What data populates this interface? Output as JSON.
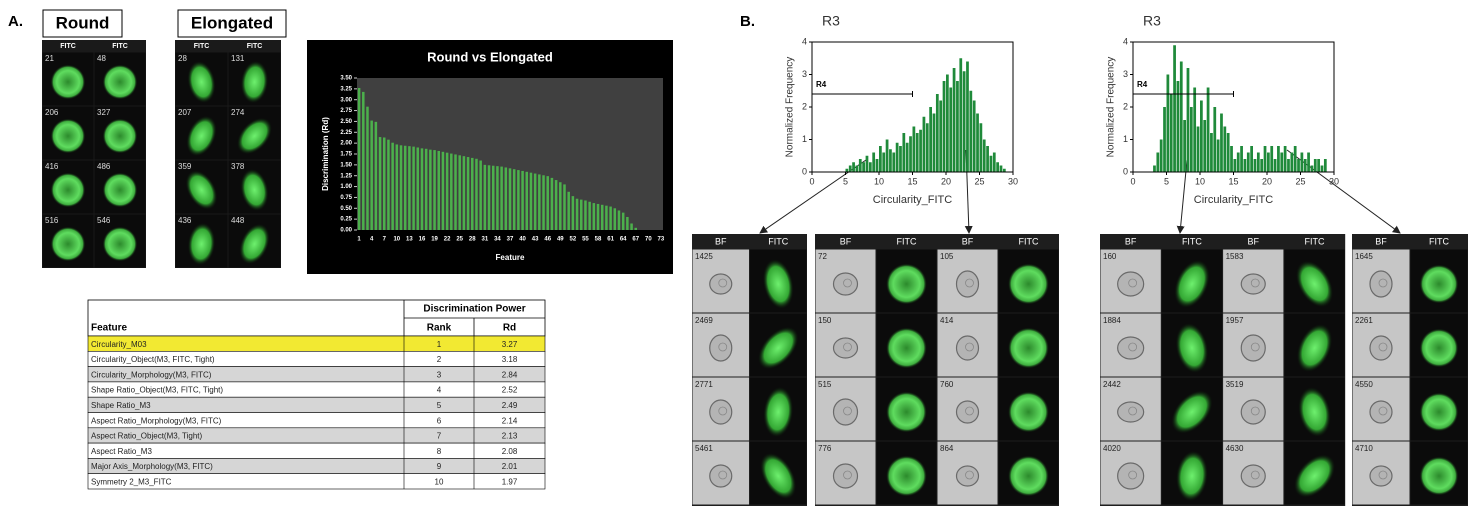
{
  "labels": {
    "a": "A.",
    "b": "B."
  },
  "image_grids": [
    {
      "title": "Round",
      "headers": [
        "FITC",
        "FITC"
      ],
      "ids": [
        [
          21,
          48
        ],
        [
          206,
          327
        ],
        [
          416,
          486
        ],
        [
          516,
          546
        ]
      ]
    },
    {
      "title": "Elongated",
      "headers": [
        "FITC",
        "FITC"
      ],
      "ids": [
        [
          28,
          131
        ],
        [
          207,
          274
        ],
        [
          359,
          378
        ],
        [
          436,
          448
        ]
      ]
    }
  ],
  "chart_data": [
    {
      "type": "bar",
      "title": "Round vs Elongated",
      "x_label": "Feature",
      "y_label": "Discrimination (Rd)",
      "color": "#4cb04c",
      "categories": [
        1,
        null,
        null,
        4,
        null,
        null,
        7,
        null,
        null,
        10,
        null,
        null,
        13,
        null,
        null,
        16,
        null,
        null,
        19,
        null,
        null,
        22,
        null,
        null,
        25,
        null,
        null,
        28,
        null,
        null,
        31,
        null,
        null,
        34,
        null,
        null,
        37,
        null,
        null,
        40,
        null,
        null,
        43,
        null,
        null,
        46,
        null,
        null,
        49,
        null,
        null,
        52,
        null,
        null,
        55,
        null,
        null,
        58,
        null,
        null,
        61,
        null,
        null,
        64,
        null,
        null,
        67,
        null,
        null,
        70,
        null,
        null,
        73
      ],
      "values": [
        3.27,
        3.18,
        2.84,
        2.52,
        2.49,
        2.14,
        2.13,
        2.08,
        2.01,
        1.97,
        1.95,
        1.94,
        1.93,
        1.92,
        1.9,
        1.88,
        1.87,
        1.85,
        1.84,
        1.82,
        1.8,
        1.78,
        1.76,
        1.74,
        1.72,
        1.7,
        1.68,
        1.66,
        1.64,
        1.6,
        1.5,
        1.49,
        1.48,
        1.47,
        1.46,
        1.44,
        1.42,
        1.4,
        1.38,
        1.36,
        1.34,
        1.32,
        1.3,
        1.28,
        1.26,
        1.24,
        1.2,
        1.15,
        1.1,
        1.05,
        0.88,
        0.78,
        0.72,
        0.7,
        0.68,
        0.65,
        0.62,
        0.6,
        0.58,
        0.56,
        0.54,
        0.5,
        0.45,
        0.4,
        0.3,
        0.15,
        0.05,
        0,
        0,
        0,
        0,
        0,
        0
      ],
      "ylim": [
        0,
        3.5
      ],
      "yticks": [
        {
          "value": 0,
          "label": "0.00"
        },
        {
          "value": 0.25,
          "label": "0.25"
        },
        {
          "value": 0.5,
          "label": "0.50"
        },
        {
          "value": 0.75,
          "label": "0.75"
        },
        {
          "value": 1,
          "label": "1.00"
        },
        {
          "value": 1.25,
          "label": "1.25"
        },
        {
          "value": 1.5,
          "label": "1.50"
        },
        {
          "value": 1.75,
          "label": "1.75"
        },
        {
          "value": 2,
          "label": "2.00"
        },
        {
          "value": 2.25,
          "label": "2.25"
        },
        {
          "value": 2.5,
          "label": "2.50"
        },
        {
          "value": 2.75,
          "label": "2.75"
        },
        {
          "value": 3,
          "label": "3.00"
        },
        {
          "value": 3.25,
          "label": "3.25"
        },
        {
          "value": 3.5,
          "label": "3.50"
        }
      ]
    },
    {
      "type": "histogram",
      "title": "R3",
      "x_label": "Circularity_FITC",
      "y_label": "Normalized Frequency",
      "color": "#1f8a3a",
      "bins": [
        0,
        0.5,
        1,
        1.5,
        2,
        2.5,
        3,
        3.5,
        4,
        4.5,
        5,
        5.5,
        6,
        6.5,
        7,
        7.5,
        8,
        8.5,
        9,
        9.5,
        10,
        10.5,
        11,
        11.5,
        12,
        12.5,
        13,
        13.5,
        14,
        14.5,
        15,
        15.5,
        16,
        16.5,
        17,
        17.5,
        18,
        18.5,
        19,
        19.5,
        20,
        20.5,
        21,
        21.5,
        22,
        22.5,
        23,
        23.5,
        24,
        24.5,
        25,
        25.5,
        26,
        26.5,
        27,
        27.5,
        28,
        28.5,
        29,
        29.5,
        30
      ],
      "values": [
        0,
        0,
        0,
        0,
        0,
        0,
        0,
        0,
        0,
        0,
        0.1,
        0.2,
        0.3,
        0.2,
        0.4,
        0.3,
        0.5,
        0.3,
        0.6,
        0.4,
        0.8,
        0.6,
        1.0,
        0.7,
        0.6,
        0.9,
        0.8,
        1.2,
        0.9,
        1.1,
        1.4,
        1.2,
        1.3,
        1.7,
        1.5,
        2.0,
        1.8,
        2.4,
        2.2,
        2.8,
        3.0,
        2.6,
        3.2,
        2.8,
        3.5,
        3.1,
        3.4,
        2.5,
        2.2,
        1.8,
        1.5,
        1.0,
        0.8,
        0.5,
        0.6,
        0.3,
        0.2,
        0.1,
        0,
        0
      ],
      "xlim": [
        0,
        30
      ],
      "xticks": [
        0,
        5,
        10,
        15,
        20,
        25,
        30
      ],
      "ylim": [
        0,
        4
      ],
      "yticks": [
        0,
        1,
        2,
        3,
        4
      ],
      "gate": {
        "label": "R4",
        "x": [
          0,
          15
        ],
        "y": 2.4
      }
    },
    {
      "type": "histogram",
      "title": "R3",
      "x_label": "Circularity_FITC",
      "y_label": "Normalized Frequency",
      "color": "#1f8a3a",
      "bins": [
        0,
        0.5,
        1,
        1.5,
        2,
        2.5,
        3,
        3.5,
        4,
        4.5,
        5,
        5.5,
        6,
        6.5,
        7,
        7.5,
        8,
        8.5,
        9,
        9.5,
        10,
        10.5,
        11,
        11.5,
        12,
        12.5,
        13,
        13.5,
        14,
        14.5,
        15,
        15.5,
        16,
        16.5,
        17,
        17.5,
        18,
        18.5,
        19,
        19.5,
        20,
        20.5,
        21,
        21.5,
        22,
        22.5,
        23,
        23.5,
        24,
        24.5,
        25,
        25.5,
        26,
        26.5,
        27,
        27.5,
        28,
        28.5,
        29,
        29.5,
        30
      ],
      "values": [
        0,
        0,
        0,
        0,
        0,
        0,
        0.2,
        0.6,
        1.0,
        2.0,
        3.0,
        2.4,
        3.9,
        2.8,
        3.4,
        1.6,
        3.2,
        2.0,
        2.6,
        1.4,
        2.2,
        1.6,
        2.6,
        1.2,
        2.0,
        1.0,
        1.8,
        1.4,
        1.2,
        0.8,
        0.4,
        0.6,
        0.8,
        0.4,
        0.6,
        0.8,
        0.4,
        0.6,
        0.4,
        0.8,
        0.6,
        0.8,
        0.4,
        0.8,
        0.6,
        0.8,
        0.4,
        0.6,
        0.8,
        0.4,
        0.6,
        0.4,
        0.6,
        0.2,
        0.4,
        0.4,
        0.2,
        0.4,
        0,
        0
      ],
      "xlim": [
        0,
        30
      ],
      "xticks": [
        0,
        5,
        10,
        15,
        20,
        25,
        30
      ],
      "ylim": [
        0,
        4
      ],
      "yticks": [
        0,
        1,
        2,
        3,
        4
      ],
      "gate": {
        "label": "R4",
        "x": [
          0,
          15
        ],
        "y": 2.4
      }
    }
  ],
  "table": {
    "group_header": "Discrimination Power",
    "columns": [
      "Feature",
      "Rank",
      "Rd"
    ],
    "rows": [
      [
        "Circularity_M03",
        1,
        3.27
      ],
      [
        "Circularity_Object(M3, FITC, Tight)",
        2,
        3.18
      ],
      [
        "Circularity_Morphology(M3, FITC)",
        3,
        2.84
      ],
      [
        "Shape Ratio_Object(M3, FITC, Tight)",
        4,
        2.52
      ],
      [
        "Shape Ratio_M3",
        5,
        2.49
      ],
      [
        "Aspect Ratio_Morphology(M3, FITC)",
        6,
        2.14
      ],
      [
        "Aspect Ratio_Object(M3, Tight)",
        7,
        2.13
      ],
      [
        "Aspect Ratio_M3",
        8,
        2.08
      ],
      [
        "Major Axis_Morphology(M3, FITC)",
        9,
        2.01
      ],
      [
        "Symmetry 2_M3_FITC",
        10,
        1.97
      ]
    ]
  },
  "galleries": [
    {
      "headers": [
        "BF",
        "FITC"
      ],
      "ids": [
        [
          1425
        ],
        [
          2469
        ],
        [
          2771
        ],
        [
          5461
        ]
      ]
    },
    {
      "headers": [
        "BF",
        "FITC",
        "BF",
        "FITC"
      ],
      "ids": [
        [
          72,
          105
        ],
        [
          150,
          414
        ],
        [
          515,
          760
        ],
        [
          776,
          864
        ]
      ]
    },
    {
      "headers": [
        "BF",
        "FITC",
        "BF",
        "FITC"
      ],
      "ids": [
        [
          160,
          1583
        ],
        [
          1884,
          1957
        ],
        [
          2442,
          3519
        ],
        [
          4020,
          4630
        ]
      ]
    },
    {
      "headers": [
        "BF",
        "FITC"
      ],
      "ids": [
        [
          1645
        ],
        [
          2261
        ],
        [
          4550
        ],
        [
          4710
        ]
      ]
    }
  ]
}
